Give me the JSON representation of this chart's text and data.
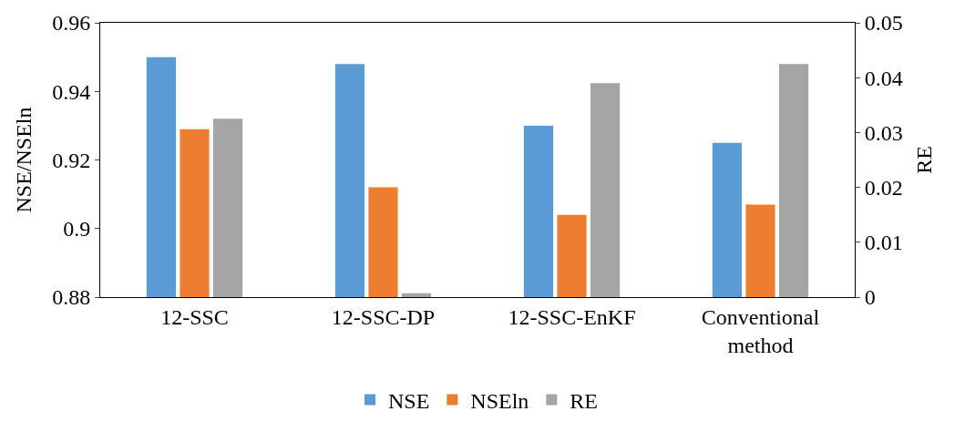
{
  "chart_data": {
    "type": "bar",
    "ylabel": "NSE/NSEln",
    "y2label": "RE",
    "categories": [
      "12-SSC",
      "12-SSC-DP",
      "12-SSC-EnKF",
      "Conventional method"
    ],
    "series": [
      {
        "name": "NSE",
        "color": "#5b9bd5",
        "values": [
          0.95,
          0.948,
          0.93,
          0.925
        ]
      },
      {
        "name": "NSEln",
        "color": "#ed7d31",
        "values": [
          0.929,
          0.912,
          0.904,
          0.907
        ]
      },
      {
        "name": "RE",
        "color": "#a5a5a5",
        "values": [
          0.0325,
          0.0007,
          0.039,
          0.0425
        ],
        "axis": "y2"
      }
    ],
    "ylim": [
      0.88,
      0.96
    ],
    "yticks": [
      0.88,
      0.9,
      0.92,
      0.94,
      0.96
    ],
    "y2lim": [
      0,
      0.05
    ],
    "y2ticks": [
      0,
      0.01,
      0.02,
      0.03,
      0.04,
      0.05
    ],
    "legend": "bottom"
  }
}
